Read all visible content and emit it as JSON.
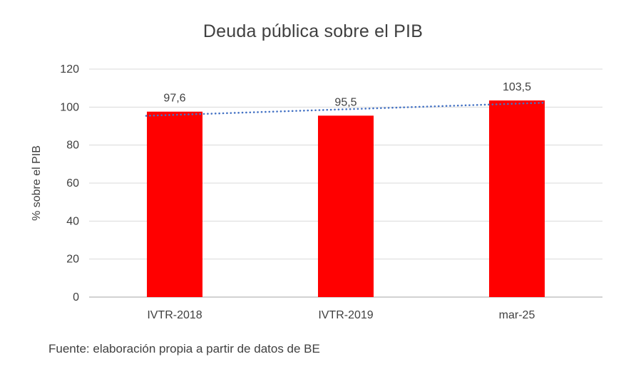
{
  "chart_data": {
    "type": "bar",
    "title": "Deuda pública sobre el PIB",
    "categories": [
      "IVTR-2018",
      "IVTR-2019",
      "mar-25"
    ],
    "values": [
      97.6,
      95.5,
      103.5
    ],
    "data_labels": [
      "97,6",
      "95,5",
      "103,5"
    ],
    "xlabel": "",
    "ylabel": "% sobre el PIB",
    "ylim": [
      0,
      120
    ],
    "ytick_interval": 20,
    "ytick_labels": [
      "0",
      "20",
      "40",
      "60",
      "80",
      "100",
      "120"
    ],
    "grid": true,
    "legend": "none",
    "bar_color": "#ff0000",
    "gridline_color": "#d9d9d9",
    "axis_line_color": "#a6a6a6",
    "trendline": {
      "style": "dotted",
      "color": "#4472c4",
      "fit": "linear"
    },
    "source_note": "Fuente: elaboración propia a partir de datos de BE"
  }
}
